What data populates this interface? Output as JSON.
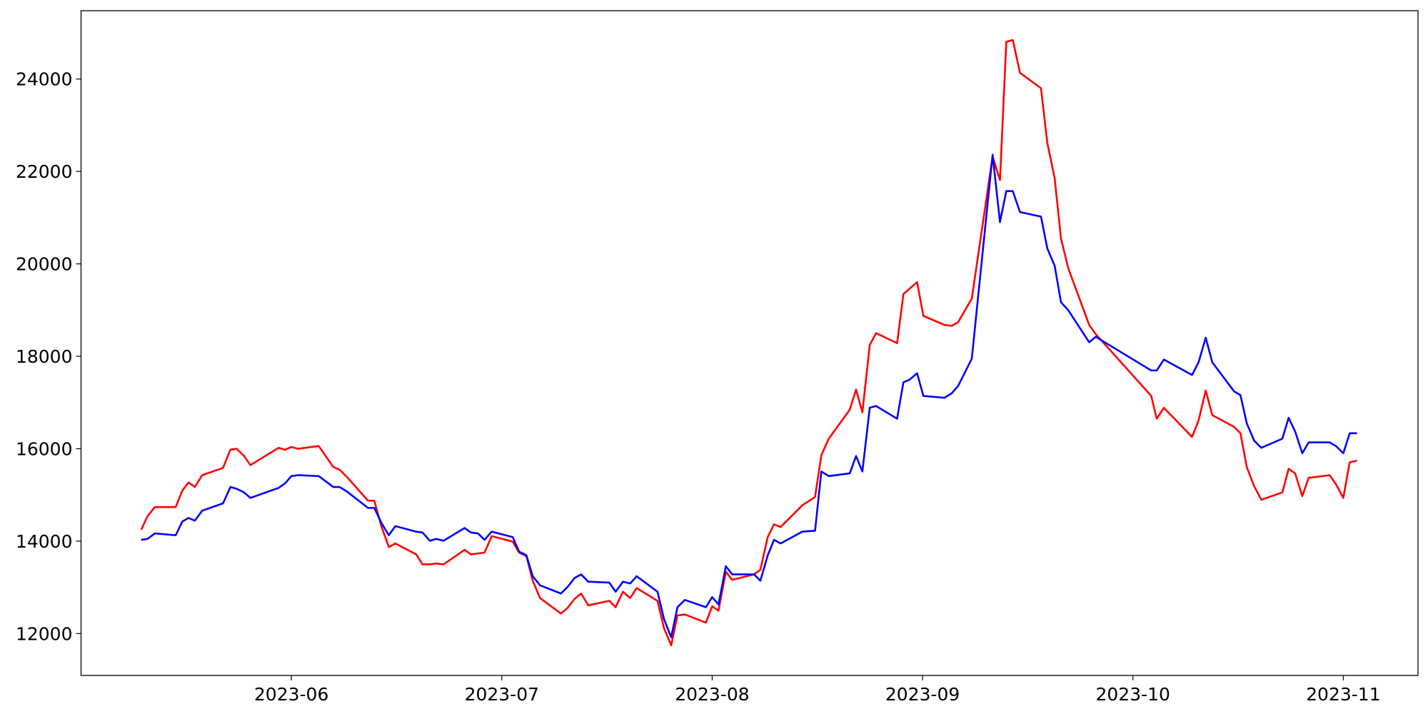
{
  "chart_data": {
    "type": "line",
    "x": [
      5.286,
      5.316,
      5.351,
      5.45,
      5.481,
      5.511,
      5.541,
      5.576,
      5.675,
      5.71,
      5.74,
      5.775,
      5.805,
      5.939,
      5.97,
      6.0,
      6.03,
      6.13,
      6.199,
      6.229,
      6.264,
      6.364,
      6.394,
      6.429,
      6.463,
      6.494,
      6.593,
      6.623,
      6.658,
      6.688,
      6.723,
      6.823,
      6.853,
      6.887,
      6.918,
      6.952,
      7.052,
      7.082,
      7.117,
      7.147,
      7.182,
      7.281,
      7.312,
      7.346,
      7.377,
      7.411,
      7.511,
      7.541,
      7.576,
      7.61,
      7.641,
      7.74,
      7.771,
      7.805,
      7.835,
      7.87,
      7.97,
      8.0,
      8.03,
      8.065,
      8.095,
      8.199,
      8.229,
      8.264,
      8.294,
      8.325,
      8.429,
      8.489,
      8.519,
      8.554,
      8.654,
      8.684,
      8.714,
      8.749,
      8.779,
      8.879,
      8.909,
      8.939,
      8.974,
      9.004,
      9.104,
      9.139,
      9.169,
      9.234,
      9.333,
      9.368,
      9.398,
      9.429,
      9.463,
      9.563,
      9.593,
      9.628,
      9.658,
      9.693,
      9.792,
      9.823,
      10.087,
      10.113,
      10.147,
      10.281,
      10.312,
      10.346,
      10.377,
      10.481,
      10.511,
      10.541,
      10.576,
      10.61,
      10.71,
      10.74,
      10.771,
      10.805,
      10.835,
      10.935,
      10.965,
      11.0,
      11.03,
      11.065
    ],
    "series": [
      {
        "color": "#ff0000",
        "values": [
          14246,
          14541,
          14738,
          14738,
          15093,
          15270,
          15172,
          15428,
          15585,
          15979,
          15999,
          15842,
          15645,
          16019,
          15979,
          16039,
          15999,
          16058,
          15605,
          15546,
          15388,
          14876,
          14876,
          14305,
          13872,
          13950,
          13714,
          13497,
          13497,
          13517,
          13497,
          13812,
          13714,
          13734,
          13753,
          14108,
          13990,
          13753,
          13675,
          13143,
          12768,
          12433,
          12552,
          12749,
          12867,
          12611,
          12709,
          12571,
          12906,
          12768,
          12985,
          12709,
          12118,
          11744,
          12394,
          12414,
          12236,
          12591,
          12493,
          13340,
          13162,
          13281,
          13379,
          14088,
          14364,
          14305,
          14778,
          14955,
          15861,
          16216,
          16846,
          17280,
          16787,
          18245,
          18501,
          18284,
          19348,
          19466,
          19604,
          18875,
          18678,
          18659,
          18737,
          19250,
          22323,
          21811,
          24805,
          24844,
          24135,
          23800,
          22618,
          21850,
          20550,
          19900,
          18678,
          18481,
          17142,
          16649,
          16886,
          16255,
          16610,
          17260,
          16728,
          16472,
          16334,
          15605,
          15191,
          14896,
          15054,
          15566,
          15467,
          14975,
          15369,
          15428,
          15231,
          14935,
          15704,
          15743
        ]
      },
      {
        "color": "#0000ff",
        "values": [
          14029,
          14049,
          14167,
          14128,
          14423,
          14502,
          14443,
          14660,
          14817,
          15172,
          15132,
          15054,
          14935,
          15152,
          15251,
          15408,
          15428,
          15408,
          15172,
          15172,
          15073,
          14719,
          14719,
          14384,
          14128,
          14325,
          14206,
          14187,
          14009,
          14049,
          14009,
          14285,
          14187,
          14167,
          14029,
          14206,
          14088,
          13773,
          13694,
          13241,
          13044,
          12867,
          13005,
          13202,
          13281,
          13123,
          13103,
          12906,
          13123,
          13084,
          13241,
          12906,
          12315,
          11921,
          12571,
          12729,
          12571,
          12788,
          12630,
          13458,
          13281,
          13281,
          13143,
          13694,
          14029,
          13950,
          14206,
          14226,
          15507,
          15408,
          15467,
          15842,
          15507,
          16886,
          16925,
          16649,
          17437,
          17496,
          17634,
          17142,
          17102,
          17201,
          17358,
          17949,
          22362,
          20904,
          21574,
          21574,
          21121,
          21023,
          20333,
          19959,
          19171,
          18994,
          18304,
          18422,
          17693,
          17693,
          17930,
          17595,
          17871,
          18403,
          17871,
          17240,
          17161,
          16551,
          16176,
          16019,
          16216,
          16669,
          16373,
          15901,
          16137,
          16137,
          16058,
          15901,
          16334,
          16334
        ]
      }
    ],
    "xlim": [
      5.0,
      11.355
    ],
    "xticks": [
      {
        "value": 6,
        "label": "2023-06"
      },
      {
        "value": 7,
        "label": "2023-07"
      },
      {
        "value": 8,
        "label": "2023-08"
      },
      {
        "value": 9,
        "label": "2023-09"
      },
      {
        "value": 10,
        "label": "2023-10"
      },
      {
        "value": 11,
        "label": "2023-11"
      }
    ],
    "ylim": [
      11094,
      25478
    ],
    "yticks": [
      12000,
      14000,
      16000,
      18000,
      20000,
      22000,
      24000
    ],
    "grid": false
  }
}
